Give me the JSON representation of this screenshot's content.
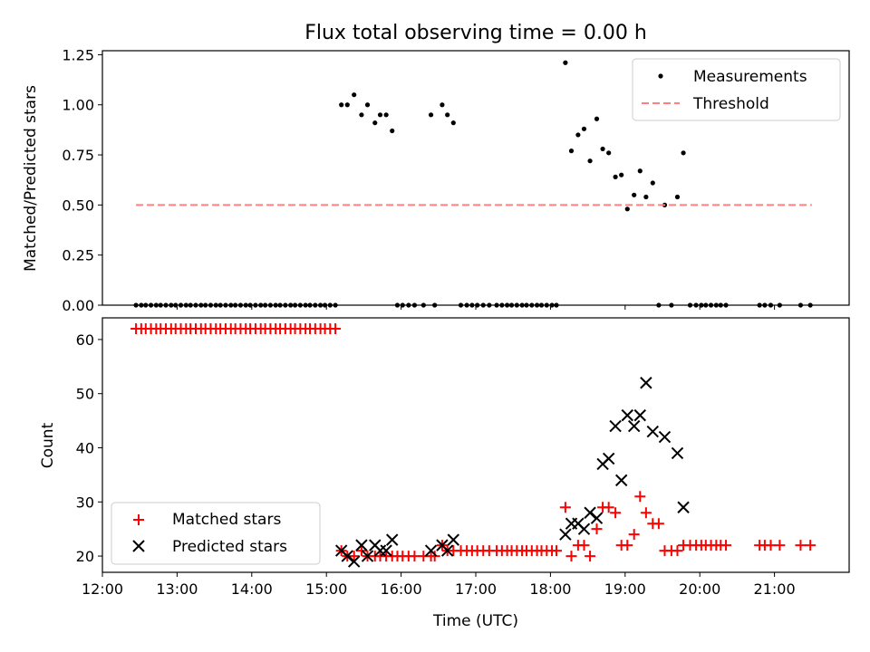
{
  "chart_data": [
    {
      "type": "scatter",
      "title": "Flux total observing time = 0.00 h",
      "ylabel": "Matched/Predicted stars",
      "xlabel": "",
      "xlim": [
        12.0,
        22.0
      ],
      "ylim": [
        0.0,
        1.27
      ],
      "yticks": [
        0.0,
        0.25,
        0.5,
        0.75,
        1.0,
        1.25
      ],
      "ytick_labels": [
        "0.00",
        "0.25",
        "0.50",
        "0.75",
        "1.00",
        "1.25"
      ],
      "xticks": [
        13,
        14,
        15,
        16,
        17,
        18,
        19,
        20,
        21
      ],
      "grid": false,
      "legend_position": "top-right",
      "series": [
        {
          "name": "Measurements",
          "color": "#000000",
          "marker": "dot",
          "x": [
            12.45,
            12.52,
            12.58,
            12.65,
            12.72,
            12.78,
            12.85,
            12.92,
            12.98,
            13.05,
            13.12,
            13.18,
            13.25,
            13.32,
            13.38,
            13.45,
            13.52,
            13.58,
            13.65,
            13.72,
            13.78,
            13.85,
            13.92,
            13.98,
            14.05,
            14.12,
            14.18,
            14.25,
            14.32,
            14.38,
            14.45,
            14.52,
            14.58,
            14.65,
            14.72,
            14.78,
            14.85,
            14.92,
            14.98,
            15.05,
            15.12,
            15.2,
            15.28,
            15.37,
            15.47,
            15.55,
            15.65,
            15.72,
            15.8,
            15.88,
            15.95,
            16.02,
            16.1,
            16.18,
            16.3,
            16.4,
            16.45,
            16.55,
            16.62,
            16.7,
            16.8,
            16.88,
            16.95,
            17.02,
            17.1,
            17.18,
            17.28,
            17.35,
            17.42,
            17.48,
            17.55,
            17.62,
            17.68,
            17.75,
            17.82,
            17.88,
            17.95,
            18.02,
            18.08,
            18.2,
            18.28,
            18.37,
            18.45,
            18.53,
            18.62,
            18.7,
            18.78,
            18.87,
            18.95,
            19.03,
            19.12,
            19.2,
            19.28,
            19.37,
            19.45,
            19.53,
            19.62,
            19.7,
            19.78,
            19.87,
            19.95,
            20.02,
            20.08,
            20.15,
            20.22,
            20.28,
            20.35,
            20.8,
            20.87,
            20.95,
            21.07,
            21.35,
            21.48
          ],
          "values": [
            0,
            0,
            0,
            0,
            0,
            0,
            0,
            0,
            0,
            0,
            0,
            0,
            0,
            0,
            0,
            0,
            0,
            0,
            0,
            0,
            0,
            0,
            0,
            0,
            0,
            0,
            0,
            0,
            0,
            0,
            0,
            0,
            0,
            0,
            0,
            0,
            0,
            0,
            0,
            0,
            0,
            1.0,
            1.0,
            1.05,
            0.95,
            1.0,
            0.91,
            0.95,
            0.95,
            0.87,
            0,
            0,
            0,
            0,
            0,
            0.95,
            0,
            1.0,
            0.95,
            0.91,
            0,
            0,
            0,
            0,
            0,
            0,
            0,
            0,
            0,
            0,
            0,
            0,
            0,
            0,
            0,
            0,
            0,
            0,
            0,
            1.21,
            0.77,
            0.85,
            0.88,
            0.72,
            0.93,
            0.78,
            0.76,
            0.64,
            0.65,
            0.48,
            0.55,
            0.67,
            0.54,
            0.61,
            0,
            0.5,
            0,
            0.54,
            0.76,
            0,
            0,
            0,
            0,
            0,
            0,
            0,
            0,
            0,
            0,
            0,
            0,
            0,
            0
          ]
        },
        {
          "name": "Threshold",
          "color": "#ff8080",
          "style": "dashed",
          "x": [
            12.45,
            21.5
          ],
          "values": [
            0.5,
            0.5
          ]
        }
      ]
    },
    {
      "type": "scatter",
      "title": "",
      "ylabel": "Count",
      "xlabel": "Time (UTC)",
      "xlim": [
        12.0,
        22.0
      ],
      "ylim": [
        17,
        64
      ],
      "yticks": [
        20,
        30,
        40,
        50,
        60
      ],
      "ytick_labels": [
        "20",
        "30",
        "40",
        "50",
        "60"
      ],
      "xticks": [
        12,
        13,
        14,
        15,
        16,
        17,
        18,
        19,
        20,
        21
      ],
      "xtick_labels": [
        "12:00",
        "13:00",
        "14:00",
        "15:00",
        "16:00",
        "17:00",
        "18:00",
        "19:00",
        "20:00",
        "21:00"
      ],
      "grid": false,
      "legend_position": "bottom-left",
      "series": [
        {
          "name": "Matched stars",
          "color": "#ff0000",
          "marker": "plus",
          "x": [
            12.45,
            12.52,
            12.58,
            12.65,
            12.72,
            12.78,
            12.85,
            12.92,
            12.98,
            13.05,
            13.12,
            13.18,
            13.25,
            13.32,
            13.38,
            13.45,
            13.52,
            13.58,
            13.65,
            13.72,
            13.78,
            13.85,
            13.92,
            13.98,
            14.05,
            14.12,
            14.18,
            14.25,
            14.32,
            14.38,
            14.45,
            14.52,
            14.58,
            14.65,
            14.72,
            14.78,
            14.85,
            14.92,
            14.98,
            15.05,
            15.12,
            15.2,
            15.28,
            15.37,
            15.47,
            15.55,
            15.65,
            15.72,
            15.8,
            15.88,
            15.95,
            16.02,
            16.1,
            16.18,
            16.3,
            16.4,
            16.45,
            16.55,
            16.62,
            16.7,
            16.8,
            16.88,
            16.95,
            17.02,
            17.1,
            17.18,
            17.28,
            17.35,
            17.42,
            17.48,
            17.55,
            17.62,
            17.68,
            17.75,
            17.82,
            17.88,
            17.95,
            18.02,
            18.08,
            18.2,
            18.28,
            18.37,
            18.45,
            18.53,
            18.62,
            18.7,
            18.78,
            18.87,
            18.95,
            19.03,
            19.12,
            19.2,
            19.28,
            19.37,
            19.45,
            19.53,
            19.62,
            19.7,
            19.78,
            19.87,
            19.95,
            20.02,
            20.08,
            20.15,
            20.22,
            20.28,
            20.35,
            20.8,
            20.87,
            20.95,
            21.07,
            21.35,
            21.48
          ],
          "values": [
            62,
            62,
            62,
            62,
            62,
            62,
            62,
            62,
            62,
            62,
            62,
            62,
            62,
            62,
            62,
            62,
            62,
            62,
            62,
            62,
            62,
            62,
            62,
            62,
            62,
            62,
            62,
            62,
            62,
            62,
            62,
            62,
            62,
            62,
            62,
            62,
            62,
            62,
            62,
            62,
            62,
            21,
            20,
            20,
            21,
            20,
            20,
            20,
            20,
            20,
            20,
            20,
            20,
            20,
            20,
            20,
            20,
            22,
            21,
            21,
            21,
            21,
            21,
            21,
            21,
            21,
            21,
            21,
            21,
            21,
            21,
            21,
            21,
            21,
            21,
            21,
            21,
            21,
            21,
            29,
            20,
            22,
            22,
            20,
            25,
            29,
            29,
            28,
            22,
            22,
            24,
            31,
            28,
            26,
            26,
            21,
            21,
            21,
            22,
            22,
            22,
            22,
            22,
            22,
            22,
            22,
            22,
            22,
            22,
            22,
            22,
            22,
            22
          ]
        },
        {
          "name": "Predicted stars",
          "color": "#000000",
          "marker": "x",
          "x": [
            15.2,
            15.28,
            15.37,
            15.47,
            15.55,
            15.65,
            15.72,
            15.8,
            15.88,
            16.4,
            16.55,
            16.62,
            16.7,
            18.2,
            18.28,
            18.37,
            18.45,
            18.53,
            18.62,
            18.7,
            18.78,
            18.87,
            18.95,
            19.03,
            19.12,
            19.2,
            19.28,
            19.37,
            19.53,
            19.7,
            19.78
          ],
          "values": [
            21,
            20,
            19,
            22,
            20,
            22,
            21,
            21,
            23,
            21,
            22,
            21,
            23,
            24,
            26,
            26,
            25,
            28,
            27,
            37,
            38,
            44,
            34,
            46,
            44,
            46,
            52,
            43,
            42,
            39,
            29
          ]
        }
      ]
    }
  ]
}
